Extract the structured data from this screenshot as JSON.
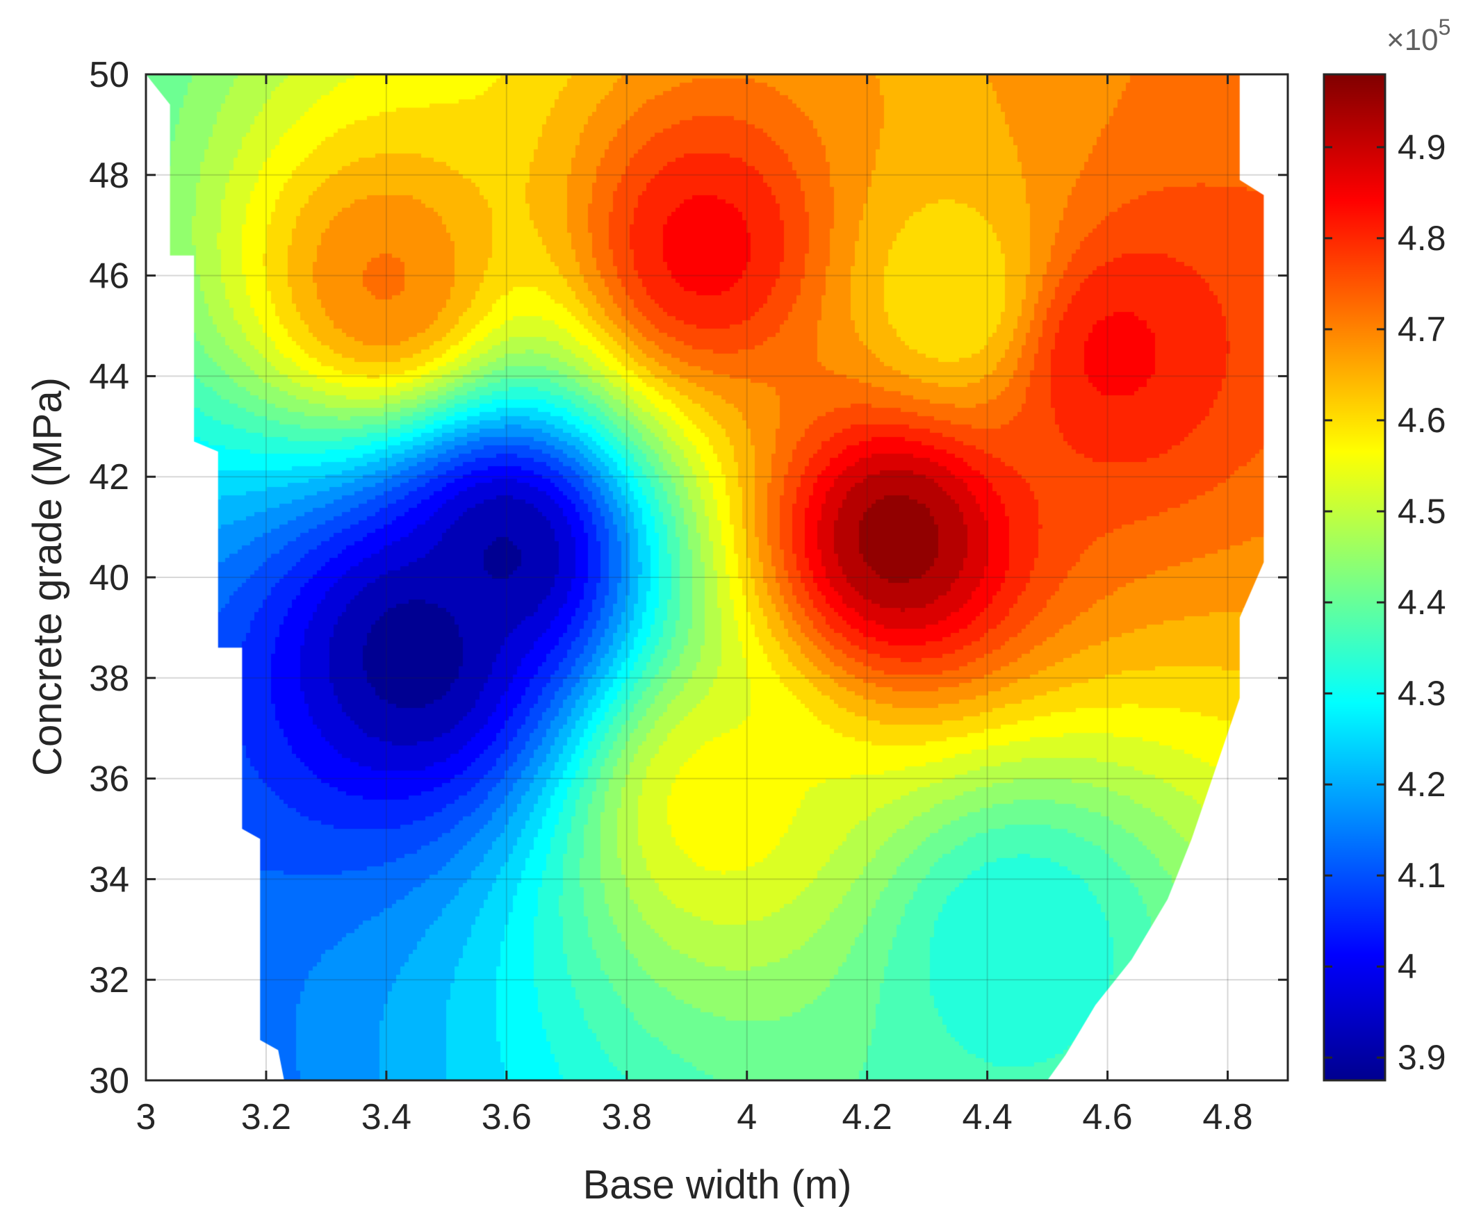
{
  "chart_data": {
    "type": "contour",
    "xlabel": "Base width (m)",
    "ylabel": "Concrete grade (MPa)",
    "xlim": [
      3,
      4.9
    ],
    "ylim": [
      30,
      50
    ],
    "xticks": [
      3,
      3.2,
      3.4,
      3.6,
      3.8,
      4,
      4.2,
      4.4,
      4.6,
      4.8
    ],
    "xtick_labels": [
      "3",
      "3.2",
      "3.4",
      "3.6",
      "3.8",
      "4",
      "4.2",
      "4.4",
      "4.6",
      "4.8"
    ],
    "yticks": [
      30,
      32,
      34,
      36,
      38,
      40,
      42,
      44,
      46,
      48,
      50
    ],
    "ytick_labels": [
      "30",
      "32",
      "34",
      "36",
      "38",
      "40",
      "42",
      "44",
      "46",
      "48",
      "50"
    ],
    "grid": true,
    "colormap": "jet",
    "colorbar": {
      "range": [
        3.875,
        4.98
      ],
      "ticks": [
        3.9,
        4,
        4.1,
        4.2,
        4.3,
        4.4,
        4.5,
        4.6,
        4.7,
        4.8,
        4.9
      ],
      "tick_labels": [
        "3.9",
        "4",
        "4.1",
        "4.2",
        "4.3",
        "4.4",
        "4.5",
        "4.6",
        "4.7",
        "4.8",
        "4.9"
      ],
      "multiplier_base": "×10",
      "multiplier_exp": "5"
    },
    "hotspots": [
      {
        "x": 4.25,
        "y": 40.8,
        "value": 4.98,
        "note": "maximum"
      },
      {
        "x": 3.93,
        "y": 46.5,
        "value": 4.85
      },
      {
        "x": 4.6,
        "y": 44.5,
        "value": 4.84
      },
      {
        "x": 4.35,
        "y": 45.5,
        "value": 4.58
      },
      {
        "x": 3.4,
        "y": 45.8,
        "value": 4.72
      },
      {
        "x": 3.45,
        "y": 38.5,
        "value": 3.88,
        "note": "minimum"
      },
      {
        "x": 3.6,
        "y": 40.5,
        "value": 3.89
      },
      {
        "x": 4.45,
        "y": 32.8,
        "value": 4.31
      },
      {
        "x": 3.95,
        "y": 35.5,
        "value": 4.57
      }
    ]
  }
}
